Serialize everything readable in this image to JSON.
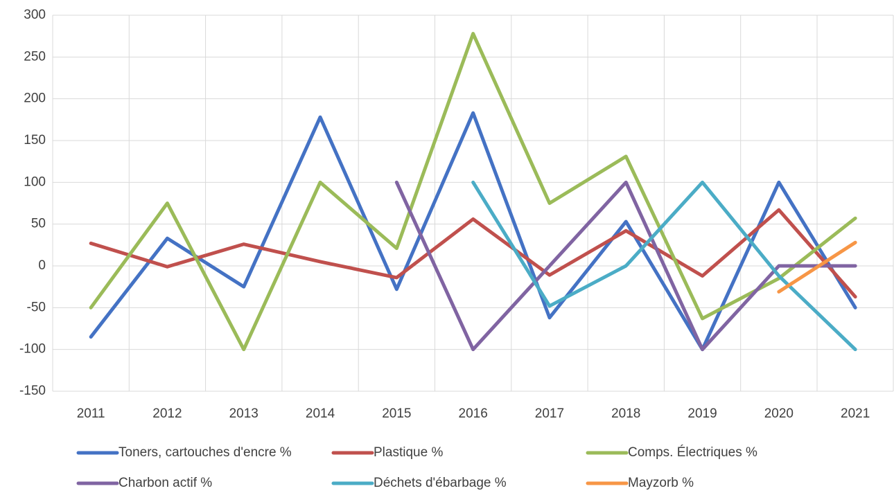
{
  "chart_data": {
    "type": "line",
    "categories": [
      "2011",
      "2012",
      "2013",
      "2014",
      "2015",
      "2016",
      "2017",
      "2018",
      "2019",
      "2020",
      "2021"
    ],
    "series": [
      {
        "name": "Toners, cartouches d'encre %",
        "color": "#4472c4",
        "values": [
          -85,
          33,
          -25,
          178,
          -28,
          183,
          -62,
          53,
          -100,
          100,
          -50
        ]
      },
      {
        "name": "Plastique %",
        "color": "#c0504d",
        "values": [
          27,
          -1,
          26,
          5,
          -14,
          56,
          -11,
          42,
          -12,
          67,
          -37
        ]
      },
      {
        "name": "Comps. Électriques %",
        "color": "#9bbb59",
        "values": [
          -50,
          75,
          -100,
          100,
          21,
          278,
          75,
          131,
          -63,
          -15,
          57
        ]
      },
      {
        "name": "Charbon actif %",
        "color": "#8064a2",
        "values": [
          null,
          null,
          null,
          null,
          100,
          -100,
          0,
          100,
          -100,
          0,
          0
        ]
      },
      {
        "name": "Déchets d'ébarbage %",
        "color": "#4bacc6",
        "values": [
          null,
          null,
          null,
          null,
          null,
          100,
          -48,
          0,
          100,
          -12,
          -100
        ]
      },
      {
        "name": "Mayzorb %",
        "color": "#f79646",
        "values": [
          null,
          null,
          null,
          null,
          null,
          null,
          null,
          null,
          null,
          -31,
          28
        ]
      }
    ],
    "ylim": [
      -150,
      300
    ],
    "yticks": [
      -150,
      -100,
      -50,
      0,
      50,
      100,
      150,
      200,
      250,
      300
    ],
    "grid": true,
    "legend": "bottom"
  }
}
